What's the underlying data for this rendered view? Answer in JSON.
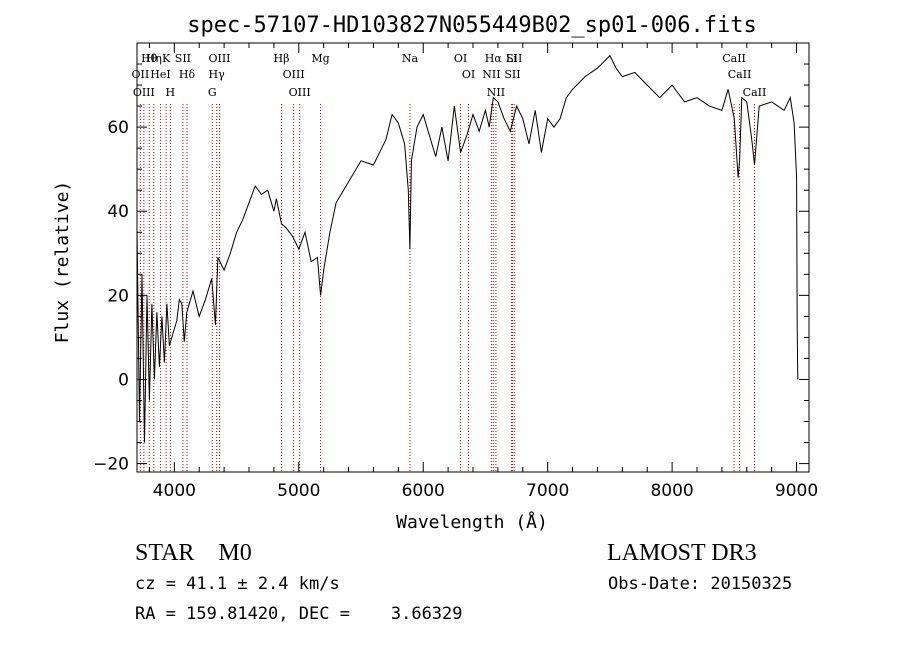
{
  "chart_data": {
    "type": "line",
    "title": "spec-57107-HD103827N055449B02_sp01-006.fits",
    "xlabel": "Wavelength (Å)",
    "ylabel": "Flux (relative)",
    "xlim": [
      3700,
      9100
    ],
    "ylim": [
      -22,
      80
    ],
    "xticks": [
      4000,
      5000,
      6000,
      7000,
      8000,
      9000
    ],
    "yticks": [
      -20,
      0,
      20,
      40,
      60
    ],
    "grid": false,
    "line_color": "#000000",
    "marker_color": "#c00000",
    "spectrum_x": [
      3700,
      3720,
      3740,
      3760,
      3780,
      3800,
      3820,
      3840,
      3860,
      3880,
      3900,
      3920,
      3940,
      3960,
      3980,
      4000,
      4020,
      4040,
      4060,
      4080,
      4100,
      4150,
      4200,
      4250,
      4300,
      4330,
      4350,
      4400,
      4450,
      4500,
      4550,
      4600,
      4650,
      4700,
      4750,
      4800,
      4820,
      4861,
      4900,
      4950,
      5000,
      5050,
      5100,
      5150,
      5175,
      5200,
      5250,
      5300,
      5400,
      5500,
      5600,
      5700,
      5750,
      5800,
      5850,
      5880,
      5893,
      5905,
      5950,
      6000,
      6050,
      6100,
      6150,
      6200,
      6250,
      6300,
      6350,
      6400,
      6450,
      6500,
      6530,
      6563,
      6600,
      6650,
      6700,
      6750,
      6800,
      6850,
      6900,
      6950,
      7000,
      7050,
      7100,
      7150,
      7200,
      7300,
      7400,
      7500,
      7550,
      7600,
      7700,
      7800,
      7900,
      8000,
      8100,
      8200,
      8300,
      8400,
      8450,
      8500,
      8530,
      8542,
      8560,
      8600,
      8640,
      8662,
      8700,
      8800,
      8900,
      8950,
      8980,
      9000,
      9005,
      9010
    ],
    "spectrum_y": [
      36,
      -10,
      25,
      -15,
      20,
      -5,
      18,
      0,
      16,
      3,
      15,
      4,
      18,
      8,
      10,
      12,
      14,
      19,
      18,
      9,
      16,
      21,
      15,
      19,
      24,
      13,
      29,
      26,
      30,
      35,
      38,
      42,
      46,
      44,
      45,
      40,
      43,
      37,
      36,
      34,
      31,
      35,
      28,
      29,
      20,
      26,
      35,
      42,
      47,
      52,
      51,
      57,
      63,
      61,
      56,
      45,
      31,
      52,
      60,
      63,
      58,
      53,
      60,
      52,
      65,
      54,
      58,
      63,
      59,
      64,
      60,
      67,
      66,
      62,
      59,
      65,
      62,
      56,
      64,
      54,
      62,
      60,
      62,
      67,
      69,
      72,
      74,
      77,
      74,
      72,
      73,
      70,
      67,
      70,
      66,
      67,
      65,
      64,
      69,
      62,
      48,
      52,
      67,
      66,
      57,
      51,
      65,
      66,
      64,
      67,
      61,
      48,
      12,
      0
    ],
    "lines": [
      {
        "label": "Hθ",
        "x": 3798
      },
      {
        "label": "OII",
        "x": 3727
      },
      {
        "label": "OIII",
        "x": 3755
      },
      {
        "label": "Hη",
        "x": 3835
      },
      {
        "label": "K",
        "x": 3934
      },
      {
        "label": "HeI",
        "x": 3889
      },
      {
        "label": "H",
        "x": 3968
      },
      {
        "label": "SII",
        "x": 4069
      },
      {
        "label": "Hδ",
        "x": 4102
      },
      {
        "label": "OIII",
        "x": 4363
      },
      {
        "label": "Hγ",
        "x": 4340
      },
      {
        "label": "G",
        "x": 4305
      },
      {
        "label": "Hβ",
        "x": 4861
      },
      {
        "label": "OIII",
        "x": 4959
      },
      {
        "label": "OIII",
        "x": 5007
      },
      {
        "label": "Mg",
        "x": 5175
      },
      {
        "label": "Na",
        "x": 5893
      },
      {
        "label": "OI",
        "x": 6300
      },
      {
        "label": "OI",
        "x": 6364
      },
      {
        "label": "Hα",
        "x": 6563
      },
      {
        "label": "NII",
        "x": 6548
      },
      {
        "label": "NII",
        "x": 6584
      },
      {
        "label": "Li",
        "x": 6708
      },
      {
        "label": "SII",
        "x": 6717
      },
      {
        "label": "SII",
        "x": 6731
      },
      {
        "label": "CaII",
        "x": 8498
      },
      {
        "label": "CaII",
        "x": 8542
      },
      {
        "label": "CaII",
        "x": 8662
      }
    ]
  },
  "info": {
    "classification": "STAR    M0",
    "survey": "LAMOST DR3",
    "redshift": "cz = 41.1 ± 2.4 km/s",
    "obs_date": "Obs-Date: 20150325",
    "coords": "RA = 159.81420, DEC =    3.66329"
  }
}
